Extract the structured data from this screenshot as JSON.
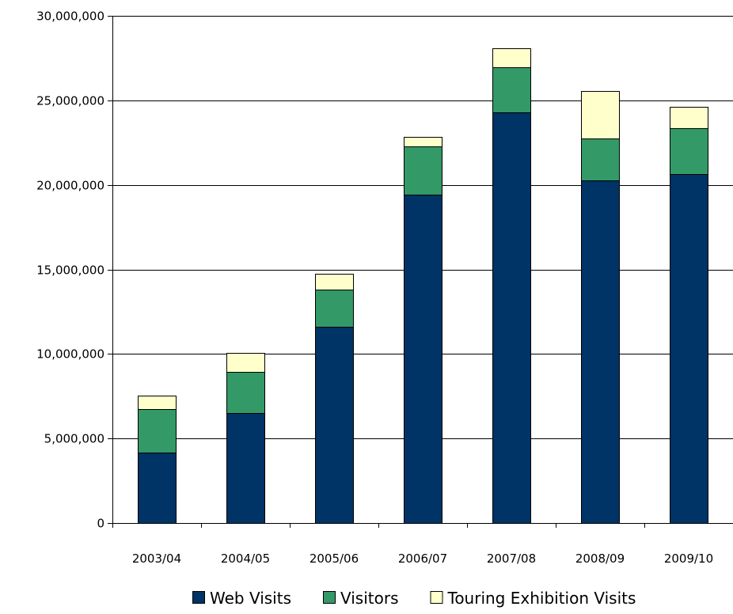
{
  "chart_data": {
    "type": "bar",
    "stacked": true,
    "categories": [
      "2003/04",
      "2004/05",
      "2005/06",
      "2006/07",
      "2007/08",
      "2008/09",
      "2009/10"
    ],
    "series": [
      {
        "name": "Web Visits",
        "color": "#003366",
        "values": [
          4150000,
          6500000,
          11600000,
          19400000,
          24300000,
          20250000,
          20650000
        ]
      },
      {
        "name": "Visitors",
        "color": "#339966",
        "values": [
          2600000,
          2450000,
          2200000,
          2900000,
          2650000,
          2500000,
          2700000
        ]
      },
      {
        "name": "Touring Exhibition Visits",
        "color": "#FFFFCC",
        "values": [
          800000,
          1100000,
          950000,
          550000,
          1150000,
          2800000,
          1250000
        ]
      }
    ],
    "title": "",
    "xlabel": "",
    "ylabel": "",
    "ylim": [
      0,
      30000000
    ],
    "yticks": [
      0,
      5000000,
      10000000,
      15000000,
      20000000,
      25000000,
      30000000
    ],
    "ytick_labels": [
      "0",
      "5,000,000",
      "10,000,000",
      "15,000,000",
      "20,000,000",
      "25,000,000",
      "30,000,000"
    ],
    "grid": true,
    "legend": "bottom"
  }
}
